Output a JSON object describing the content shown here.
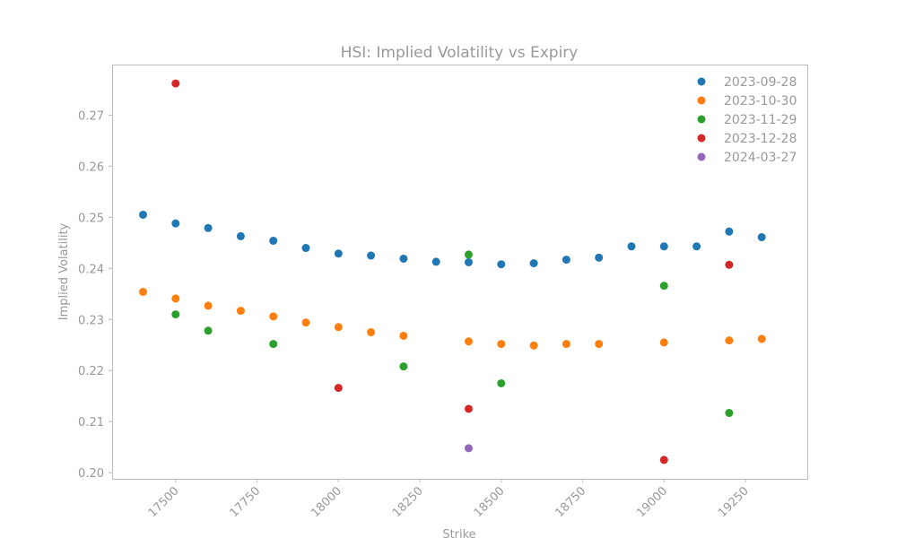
{
  "chart_data": {
    "type": "scatter",
    "title": "HSI: Implied Volatility vs Expiry",
    "xlabel": "Strike",
    "ylabel": "Implied Volatility",
    "xlim": [
      17305,
      19440
    ],
    "ylim": [
      0.1988,
      0.2799
    ],
    "x_ticks": [
      17500,
      17750,
      18000,
      18250,
      18500,
      18750,
      19000,
      19250
    ],
    "y_ticks": [
      0.2,
      0.21,
      0.22,
      0.23,
      0.24,
      0.25,
      0.26,
      0.27
    ],
    "legend_position": "top-right",
    "grid": false,
    "series": [
      {
        "name": "2023-09-28",
        "color": "#1f77b4",
        "points": [
          [
            17400,
            0.2505
          ],
          [
            17500,
            0.2488
          ],
          [
            17600,
            0.2479
          ],
          [
            17700,
            0.2463
          ],
          [
            17800,
            0.2454
          ],
          [
            17900,
            0.244
          ],
          [
            18000,
            0.2429
          ],
          [
            18100,
            0.2425
          ],
          [
            18200,
            0.2419
          ],
          [
            18300,
            0.2413
          ],
          [
            18400,
            0.2412
          ],
          [
            18500,
            0.2408
          ],
          [
            18600,
            0.241
          ],
          [
            18700,
            0.2417
          ],
          [
            18800,
            0.2421
          ],
          [
            18900,
            0.2443
          ],
          [
            19000,
            0.2443
          ],
          [
            19100,
            0.2443
          ],
          [
            19200,
            0.2472
          ],
          [
            19300,
            0.2461
          ]
        ]
      },
      {
        "name": "2023-10-30",
        "color": "#ff7f0e",
        "points": [
          [
            17400,
            0.2354
          ],
          [
            17500,
            0.2341
          ],
          [
            17600,
            0.2327
          ],
          [
            17700,
            0.2317
          ],
          [
            17800,
            0.2306
          ],
          [
            17900,
            0.2294
          ],
          [
            18000,
            0.2285
          ],
          [
            18100,
            0.2275
          ],
          [
            18200,
            0.2268
          ],
          [
            18400,
            0.2257
          ],
          [
            18500,
            0.2252
          ],
          [
            18600,
            0.2249
          ],
          [
            18700,
            0.2252
          ],
          [
            18800,
            0.2252
          ],
          [
            19000,
            0.2255
          ],
          [
            19200,
            0.2259
          ],
          [
            19300,
            0.2262
          ]
        ]
      },
      {
        "name": "2023-11-29",
        "color": "#2ca02c",
        "points": [
          [
            17500,
            0.231
          ],
          [
            17600,
            0.2278
          ],
          [
            17800,
            0.2252
          ],
          [
            18200,
            0.2208
          ],
          [
            18400,
            0.2427
          ],
          [
            18500,
            0.2175
          ],
          [
            19000,
            0.2366
          ],
          [
            19200,
            0.2117
          ]
        ]
      },
      {
        "name": "2023-12-28",
        "color": "#d62728",
        "points": [
          [
            17500,
            0.2762
          ],
          [
            18000,
            0.2166
          ],
          [
            18400,
            0.2125
          ],
          [
            19000,
            0.2025
          ],
          [
            19200,
            0.2407
          ]
        ]
      },
      {
        "name": "2024-03-27",
        "color": "#9467bd",
        "points": [
          [
            18400,
            0.2048
          ]
        ]
      }
    ]
  }
}
